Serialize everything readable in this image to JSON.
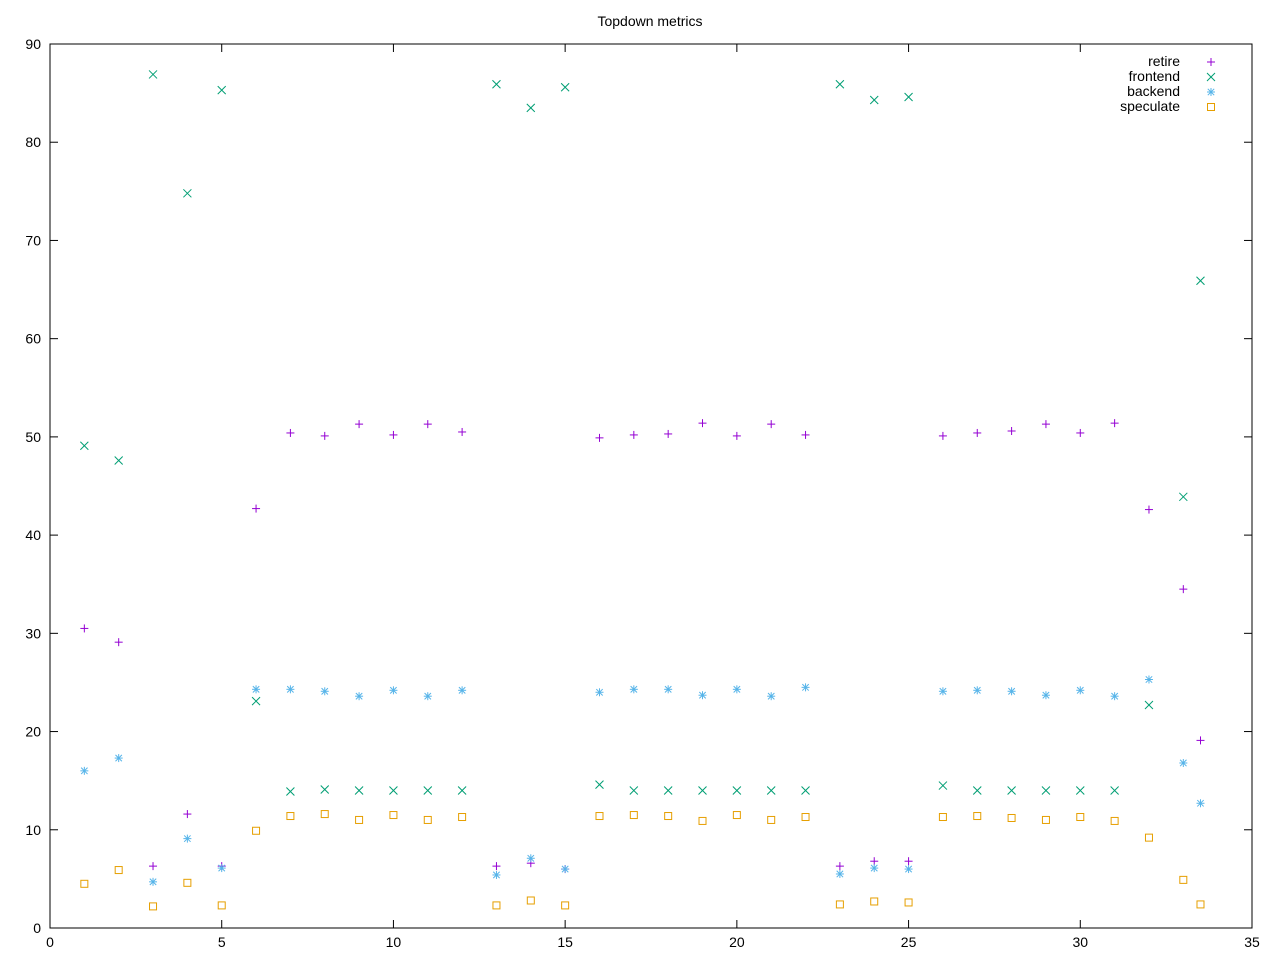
{
  "chart_data": {
    "type": "scatter",
    "title": "Topdown metrics",
    "xlim": [
      0,
      35
    ],
    "ylim": [
      0,
      90
    ],
    "xticks": [
      0,
      5,
      10,
      15,
      20,
      25,
      30,
      35
    ],
    "yticks": [
      0,
      10,
      20,
      30,
      40,
      50,
      60,
      70,
      80,
      90
    ],
    "grid": false,
    "legend_position": "top-right",
    "series": [
      {
        "name": "retire",
        "color": "#9400d3",
        "marker": "plus",
        "points": [
          [
            1,
            30.5
          ],
          [
            2,
            29.1
          ],
          [
            3,
            6.3
          ],
          [
            4,
            11.6
          ],
          [
            5,
            6.3
          ],
          [
            6,
            42.7
          ],
          [
            7,
            50.4
          ],
          [
            8,
            50.1
          ],
          [
            9,
            51.3
          ],
          [
            10,
            50.2
          ],
          [
            11,
            51.3
          ],
          [
            12,
            50.5
          ],
          [
            13,
            6.3
          ],
          [
            14,
            6.6
          ],
          [
            15,
            6.0
          ],
          [
            16,
            49.9
          ],
          [
            17,
            50.2
          ],
          [
            18,
            50.3
          ],
          [
            19,
            51.4
          ],
          [
            20,
            50.1
          ],
          [
            21,
            51.3
          ],
          [
            22,
            50.2
          ],
          [
            23,
            6.3
          ],
          [
            24,
            6.8
          ],
          [
            25,
            6.8
          ],
          [
            26,
            50.1
          ],
          [
            27,
            50.4
          ],
          [
            28,
            50.6
          ],
          [
            29,
            51.3
          ],
          [
            30,
            50.4
          ],
          [
            31,
            51.4
          ],
          [
            32,
            42.6
          ],
          [
            33,
            34.5
          ],
          [
            33.5,
            19.1
          ]
        ]
      },
      {
        "name": "frontend",
        "color": "#009e73",
        "marker": "cross",
        "points": [
          [
            1,
            49.1
          ],
          [
            2,
            47.6
          ],
          [
            3,
            86.9
          ],
          [
            4,
            74.8
          ],
          [
            5,
            85.3
          ],
          [
            6,
            23.1
          ],
          [
            7,
            13.9
          ],
          [
            8,
            14.1
          ],
          [
            9,
            14.0
          ],
          [
            10,
            14.0
          ],
          [
            11,
            14.0
          ],
          [
            12,
            14.0
          ],
          [
            13,
            85.9
          ],
          [
            14,
            83.5
          ],
          [
            15,
            85.6
          ],
          [
            16,
            14.6
          ],
          [
            17,
            14.0
          ],
          [
            18,
            14.0
          ],
          [
            19,
            14.0
          ],
          [
            20,
            14.0
          ],
          [
            21,
            14.0
          ],
          [
            22,
            14.0
          ],
          [
            23,
            85.9
          ],
          [
            24,
            84.3
          ],
          [
            25,
            84.6
          ],
          [
            26,
            14.5
          ],
          [
            27,
            14.0
          ],
          [
            28,
            14.0
          ],
          [
            29,
            14.0
          ],
          [
            30,
            14.0
          ],
          [
            31,
            14.0
          ],
          [
            32,
            22.7
          ],
          [
            33,
            43.9
          ],
          [
            33.5,
            65.9
          ]
        ]
      },
      {
        "name": "backend",
        "color": "#56b4e9",
        "marker": "star",
        "points": [
          [
            1,
            16.0
          ],
          [
            2,
            17.3
          ],
          [
            3,
            4.7
          ],
          [
            4,
            9.1
          ],
          [
            5,
            6.1
          ],
          [
            6,
            24.3
          ],
          [
            7,
            24.3
          ],
          [
            8,
            24.1
          ],
          [
            9,
            23.6
          ],
          [
            10,
            24.2
          ],
          [
            11,
            23.6
          ],
          [
            12,
            24.2
          ],
          [
            13,
            5.4
          ],
          [
            14,
            7.1
          ],
          [
            15,
            6.0
          ],
          [
            16,
            24.0
          ],
          [
            17,
            24.3
          ],
          [
            18,
            24.3
          ],
          [
            19,
            23.7
          ],
          [
            20,
            24.3
          ],
          [
            21,
            23.6
          ],
          [
            22,
            24.5
          ],
          [
            23,
            5.5
          ],
          [
            24,
            6.1
          ],
          [
            25,
            6.0
          ],
          [
            26,
            24.1
          ],
          [
            27,
            24.2
          ],
          [
            28,
            24.1
          ],
          [
            29,
            23.7
          ],
          [
            30,
            24.2
          ],
          [
            31,
            23.6
          ],
          [
            32,
            25.3
          ],
          [
            33,
            16.8
          ],
          [
            33.5,
            12.7
          ]
        ]
      },
      {
        "name": "speculate",
        "color": "#e69f00",
        "marker": "square",
        "points": [
          [
            1,
            4.5
          ],
          [
            2,
            5.9
          ],
          [
            3,
            2.2
          ],
          [
            4,
            4.6
          ],
          [
            5,
            2.3
          ],
          [
            6,
            9.9
          ],
          [
            7,
            11.4
          ],
          [
            8,
            11.6
          ],
          [
            9,
            11.0
          ],
          [
            10,
            11.5
          ],
          [
            11,
            11.0
          ],
          [
            12,
            11.3
          ],
          [
            13,
            2.3
          ],
          [
            14,
            2.8
          ],
          [
            15,
            2.3
          ],
          [
            16,
            11.4
          ],
          [
            17,
            11.5
          ],
          [
            18,
            11.4
          ],
          [
            19,
            10.9
          ],
          [
            20,
            11.5
          ],
          [
            21,
            11.0
          ],
          [
            22,
            11.3
          ],
          [
            23,
            2.4
          ],
          [
            24,
            2.7
          ],
          [
            25,
            2.6
          ],
          [
            26,
            11.3
          ],
          [
            27,
            11.4
          ],
          [
            28,
            11.2
          ],
          [
            29,
            11.0
          ],
          [
            30,
            11.3
          ],
          [
            31,
            10.9
          ],
          [
            32,
            9.2
          ],
          [
            33,
            4.9
          ],
          [
            33.5,
            2.4
          ]
        ]
      }
    ]
  }
}
